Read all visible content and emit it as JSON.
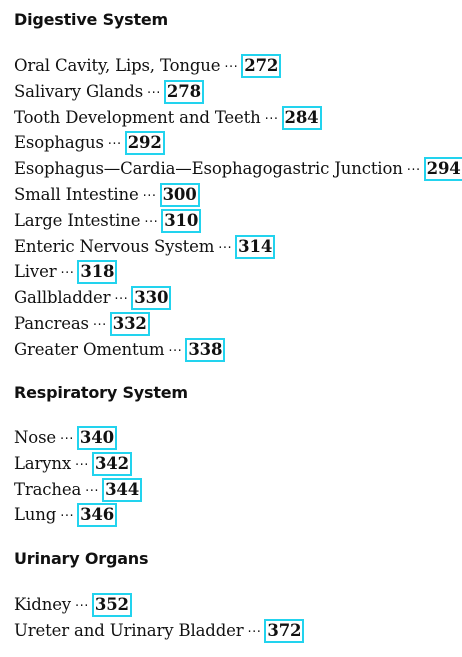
{
  "sections": [
    {
      "title": "Digestive System",
      "entries": [
        {
          "label": "Oral Cavity, Lips, Tongue",
          "dots": "···",
          "page": "272"
        },
        {
          "label": "Salivary Glands",
          "dots": "···",
          "page": "278"
        },
        {
          "label": "Tooth Development and Teeth",
          "dots": "···",
          "page": "284"
        },
        {
          "label": "Esophagus",
          "dots": "···",
          "page": "292"
        },
        {
          "label": "Esophagus—Cardia—Esophagogastric Junction",
          "dots": "···",
          "page": "294"
        },
        {
          "label": "Small Intestine",
          "dots": "···",
          "page": "300"
        },
        {
          "label": "Large Intestine",
          "dots": "···",
          "page": "310"
        },
        {
          "label": "Enteric Nervous System",
          "dots": "···",
          "page": "314"
        },
        {
          "label": "Liver",
          "dots": "···",
          "page": "318"
        },
        {
          "label": "Gallbladder",
          "dots": "···",
          "page": "330"
        },
        {
          "label": "Pancreas",
          "dots": "···",
          "page": "332"
        },
        {
          "label": "Greater Omentum",
          "dots": "···",
          "page": "338"
        }
      ]
    },
    {
      "title": "Respiratory System",
      "entries": [
        {
          "label": "Nose",
          "dots": "···",
          "page": "340"
        },
        {
          "label": "Larynx",
          "dots": "···",
          "page": "342"
        },
        {
          "label": "Trachea",
          "dots": "···",
          "page": "344"
        },
        {
          "label": "Lung",
          "dots": "···",
          "page": "346"
        }
      ]
    },
    {
      "title": "Urinary Organs",
      "entries": [
        {
          "label": "Kidney",
          "dots": "···",
          "page": "352"
        },
        {
          "label": "Ureter and Urinary Bladder",
          "dots": "···",
          "page": "372"
        }
      ]
    }
  ],
  "colors": {
    "page_box_border": "#22d3ee",
    "text": "#111111"
  }
}
